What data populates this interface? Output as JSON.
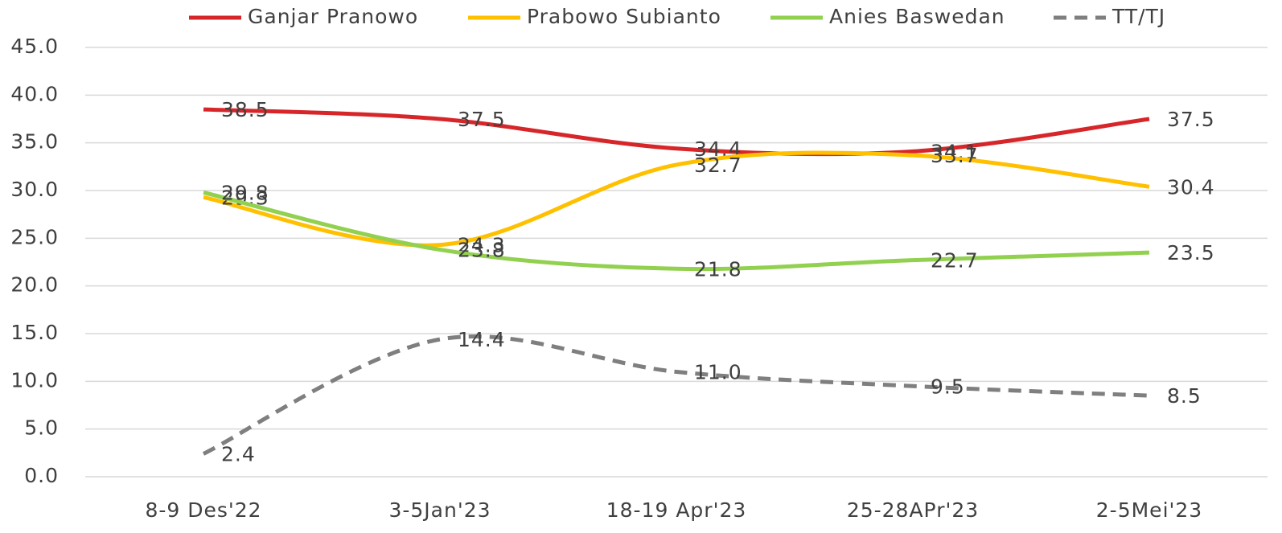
{
  "chart_data": {
    "type": "line",
    "categories": [
      "8-9 Des'22",
      "3-5Jan'23",
      "18-19 Apr'23",
      "25-28APr'23",
      "2-5Mei'23"
    ],
    "series": [
      {
        "name": "Ganjar Pranowo",
        "color": "#d7262a",
        "values": [
          38.5,
          37.5,
          34.4,
          34.1,
          37.5
        ]
      },
      {
        "name": "Prabowo Subianto",
        "color": "#ffc000",
        "values": [
          29.3,
          24.3,
          32.7,
          33.7,
          30.4
        ]
      },
      {
        "name": "Anies Baswedan",
        "color": "#92d050",
        "values": [
          29.8,
          23.8,
          21.8,
          22.7,
          23.5
        ]
      },
      {
        "name": "TT/TJ",
        "color": "#7f7f7f",
        "dashed": true,
        "values": [
          2.4,
          14.4,
          11.0,
          9.5,
          8.5
        ],
        "value_labels": [
          "2.4",
          "14.4",
          "11.0",
          "9.5",
          "8.5"
        ]
      }
    ],
    "ylim": [
      0,
      45
    ],
    "yticks": [
      {
        "value": 0,
        "label": "0.0"
      },
      {
        "value": 5,
        "label": "5.0"
      },
      {
        "value": 10,
        "label": "10.0"
      },
      {
        "value": 15,
        "label": "15.0"
      },
      {
        "value": 20,
        "label": "20.0"
      },
      {
        "value": 25,
        "label": "25.0"
      },
      {
        "value": 30,
        "label": "30.0"
      },
      {
        "value": 35,
        "label": "35.0"
      },
      {
        "value": 40,
        "label": "40.0"
      },
      {
        "value": 45,
        "label": "45.0"
      }
    ],
    "grid": true,
    "smooth": true,
    "legend": "top"
  }
}
